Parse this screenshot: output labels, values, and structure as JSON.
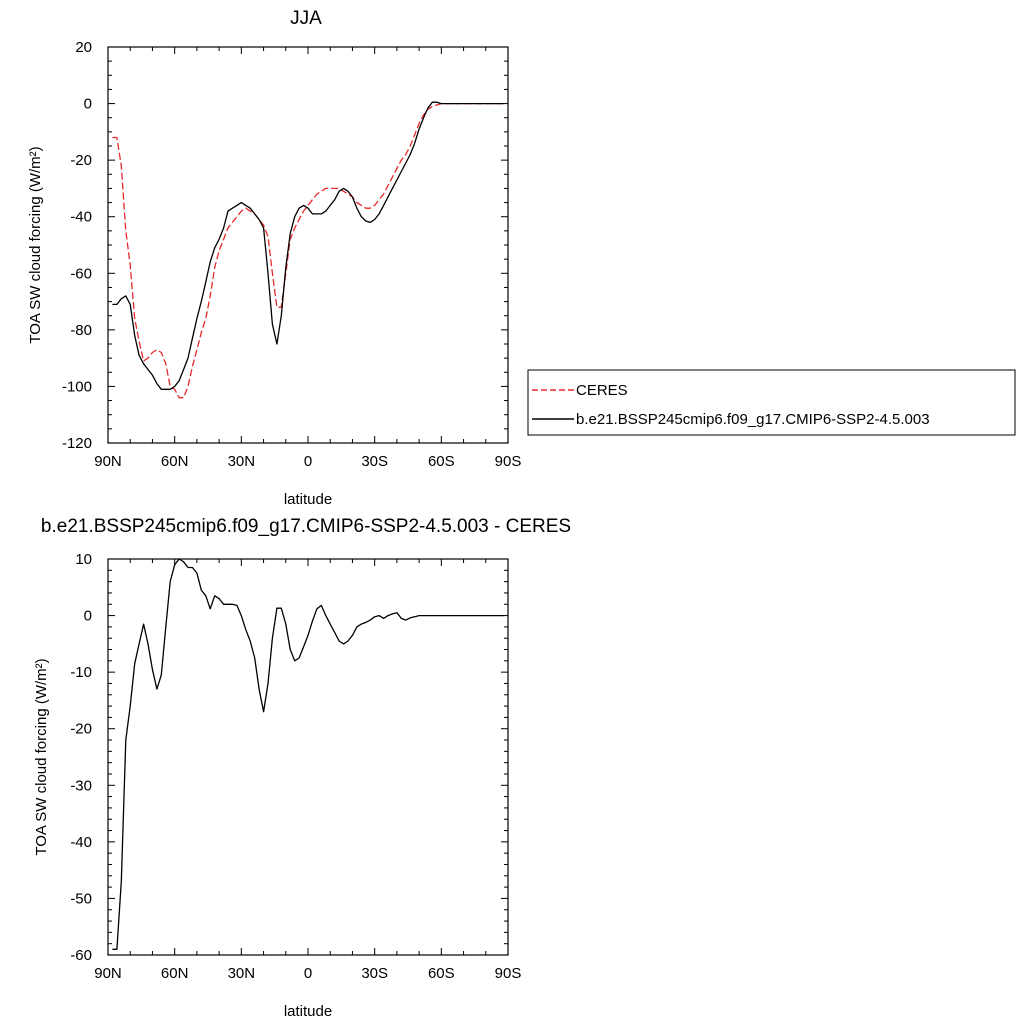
{
  "chart_data": [
    {
      "type": "line",
      "title": "JJA",
      "xlabel": "latitude",
      "ylabel": "TOA SW cloud forcing (W/m²)",
      "xlim": [
        90,
        -90
      ],
      "ylim": [
        -120,
        20
      ],
      "x_ticks": [
        90,
        60,
        30,
        0,
        -30,
        -60,
        -90
      ],
      "x_tick_labels": [
        "90N",
        "60N",
        "30N",
        "0",
        "30S",
        "60S",
        "90S"
      ],
      "y_ticks": [
        20,
        0,
        -20,
        -40,
        -60,
        -80,
        -100,
        -120
      ],
      "y_tick_labels": [
        "20",
        "0",
        "-20",
        "-40",
        "-60",
        "-80",
        "-100",
        "-120"
      ],
      "legend_position": "right",
      "series": [
        {
          "name": "CERES",
          "color": "#e8282c",
          "dash": "dashed",
          "x": [
            88,
            86,
            84,
            82,
            80,
            78,
            76,
            74,
            72,
            70,
            68,
            66,
            64,
            62,
            60,
            58,
            56,
            54,
            52,
            50,
            48,
            46,
            44,
            42,
            40,
            38,
            36,
            34,
            32,
            30,
            28,
            26,
            24,
            22,
            20,
            18,
            16,
            14,
            12,
            10,
            8,
            6,
            4,
            2,
            0,
            -2,
            -4,
            -6,
            -8,
            -10,
            -12,
            -14,
            -16,
            -18,
            -20,
            -22,
            -24,
            -26,
            -28,
            -30,
            -32,
            -34,
            -36,
            -38,
            -40,
            -42,
            -44,
            -46,
            -48,
            -50,
            -52,
            -54,
            -56,
            -58,
            -60,
            -62,
            -64,
            -66,
            -68,
            -70,
            -72,
            -74,
            -76,
            -78,
            -80,
            -82,
            -84,
            -86,
            -88
          ],
          "y": [
            -12,
            -12,
            -22,
            -45,
            -57,
            -76,
            -84,
            -91,
            -90,
            -88,
            -87,
            -88,
            -92,
            -100,
            -101,
            -104,
            -104,
            -100,
            -93,
            -87,
            -81,
            -76,
            -68,
            -58,
            -52,
            -48,
            -44,
            -42,
            -40,
            -38,
            -37,
            -38,
            -39,
            -41,
            -43,
            -47,
            -60,
            -72,
            -72,
            -60,
            -48,
            -44,
            -41,
            -38,
            -36,
            -34,
            -32,
            -31,
            -30,
            -30,
            -30,
            -30,
            -31,
            -32,
            -33,
            -35,
            -36,
            -37,
            -37,
            -36,
            -34,
            -32,
            -29,
            -26,
            -23,
            -20,
            -18,
            -15,
            -11,
            -7,
            -4,
            -2,
            -1,
            -0.5,
            0,
            0,
            0,
            0,
            0,
            0,
            0,
            0,
            0,
            0,
            0,
            0,
            0,
            0,
            0
          ]
        },
        {
          "name": "b.e21.BSSP245cmip6.f09_g17.CMIP6-SSP2-4.5.003",
          "color": "#000000",
          "dash": "solid",
          "x": [
            88,
            86,
            84,
            82,
            80,
            78,
            76,
            74,
            72,
            70,
            68,
            66,
            64,
            62,
            60,
            58,
            56,
            54,
            52,
            50,
            48,
            46,
            44,
            42,
            40,
            38,
            36,
            34,
            32,
            30,
            28,
            26,
            24,
            22,
            20,
            18,
            16,
            14,
            12,
            10,
            8,
            6,
            4,
            2,
            0,
            -2,
            -4,
            -6,
            -8,
            -10,
            -12,
            -14,
            -16,
            -18,
            -20,
            -22,
            -24,
            -26,
            -28,
            -30,
            -32,
            -34,
            -36,
            -38,
            -40,
            -42,
            -44,
            -46,
            -48,
            -50,
            -52,
            -54,
            -56,
            -58,
            -60,
            -62,
            -64,
            -66,
            -68,
            -70,
            -72,
            -74,
            -76,
            -78,
            -80,
            -82,
            -84,
            -86,
            -88
          ],
          "y": [
            -71,
            -71,
            -69,
            -68,
            -71,
            -82,
            -89,
            -92,
            -94,
            -96,
            -99,
            -101,
            -101,
            -101,
            -100,
            -98,
            -94,
            -90,
            -83,
            -76,
            -70,
            -63,
            -56,
            -51,
            -48,
            -44,
            -38,
            -37,
            -36,
            -35,
            -36,
            -37,
            -39,
            -41,
            -44,
            -60,
            -78,
            -85,
            -75,
            -58,
            -46,
            -40,
            -37,
            -36,
            -37,
            -39,
            -39,
            -39,
            -38,
            -36,
            -34,
            -31,
            -30,
            -31,
            -33,
            -37,
            -40,
            -41.5,
            -42,
            -41,
            -39,
            -36,
            -33,
            -30,
            -27,
            -24,
            -21,
            -18,
            -14,
            -9,
            -5,
            -1.5,
            0.5,
            0.5,
            0,
            0,
            0,
            0,
            0,
            0,
            0,
            0,
            0,
            0,
            0,
            0,
            0,
            0,
            0
          ]
        }
      ]
    },
    {
      "type": "line",
      "title": "b.e21.BSSP245cmip6.f09_g17.CMIP6-SSP2-4.5.003 - CERES",
      "xlabel": "latitude",
      "ylabel": "TOA SW cloud forcing (W/m²)",
      "xlim": [
        90,
        -90
      ],
      "ylim": [
        -60,
        10
      ],
      "x_ticks": [
        90,
        60,
        30,
        0,
        -30,
        -60,
        -90
      ],
      "x_tick_labels": [
        "90N",
        "60N",
        "30N",
        "0",
        "30S",
        "60S",
        "90S"
      ],
      "y_ticks": [
        10,
        0,
        -10,
        -20,
        -30,
        -40,
        -50,
        -60
      ],
      "y_tick_labels": [
        "10",
        "0",
        "-10",
        "-20",
        "-30",
        "-40",
        "-50",
        "-60"
      ],
      "series": [
        {
          "color": "#000000",
          "dash": "solid",
          "x": [
            88,
            86,
            84,
            82,
            80,
            78,
            76,
            74,
            72,
            70,
            68,
            66,
            64,
            62,
            60,
            58,
            56,
            54,
            52,
            50,
            48,
            46,
            44,
            42,
            40,
            38,
            36,
            34,
            32,
            30,
            28,
            26,
            24,
            22,
            20,
            18,
            16,
            14,
            12,
            10,
            8,
            6,
            4,
            2,
            0,
            -2,
            -4,
            -6,
            -8,
            -10,
            -12,
            -14,
            -16,
            -18,
            -20,
            -22,
            -24,
            -26,
            -28,
            -30,
            -32,
            -34,
            -36,
            -38,
            -40,
            -42,
            -44,
            -46,
            -48,
            -50,
            -52,
            -54,
            -56,
            -58,
            -60,
            -62,
            -64,
            -66,
            -68,
            -70,
            -72,
            -74,
            -76,
            -78,
            -80,
            -82,
            -84,
            -86,
            -88
          ],
          "y": [
            -59,
            -59,
            -47,
            -22,
            -16,
            -8.5,
            -5,
            -1.5,
            -5,
            -9.5,
            -13,
            -10.5,
            -2,
            6,
            9,
            10,
            9.5,
            8.5,
            8.5,
            7.5,
            4.5,
            3.5,
            1.2,
            3.5,
            3,
            2,
            2,
            2,
            1.8,
            0,
            -2.5,
            -4.5,
            -7.5,
            -13,
            -17,
            -12,
            -4,
            1.3,
            1.3,
            -1.5,
            -6,
            -8,
            -7.5,
            -5.5,
            -3.5,
            -1,
            1.2,
            1.8,
            0,
            -1.5,
            -3,
            -4.5,
            -5,
            -4.5,
            -3.5,
            -2,
            -1.5,
            -1.2,
            -0.8,
            -0.2,
            0,
            -0.5,
            0,
            0.3,
            0.5,
            -0.5,
            -0.8,
            -0.4,
            -0.2,
            0,
            0,
            0,
            0,
            0,
            0,
            0,
            0,
            0,
            0,
            0,
            0,
            0,
            0,
            0,
            0,
            0,
            0,
            0,
            0
          ]
        }
      ]
    }
  ]
}
